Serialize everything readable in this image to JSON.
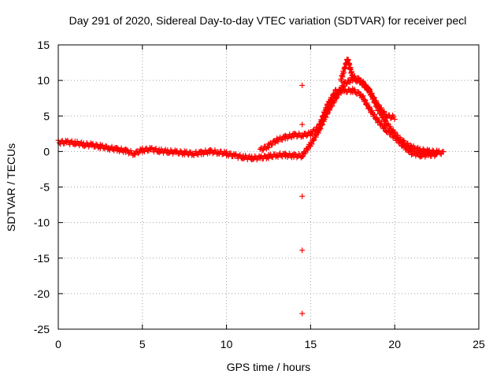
{
  "chart_data": {
    "type": "scatter",
    "title": "Day 291 of 2020, Sidereal Day-to-day VTEC variation (SDTVAR) for receiver pecl",
    "xlabel": "GPS time / hours",
    "ylabel": "SDTVAR / TECUs",
    "xlim": [
      0,
      25
    ],
    "ylim": [
      -25,
      15
    ],
    "xticks": [
      0,
      5,
      10,
      15,
      20,
      25
    ],
    "yticks": [
      -25,
      -20,
      -15,
      -10,
      -5,
      0,
      5,
      10,
      15
    ],
    "grid": true,
    "marker": "+",
    "color": "#ff0000",
    "series": [
      {
        "name": "main band",
        "points": [
          [
            0.0,
            1.3
          ],
          [
            0.5,
            1.3
          ],
          [
            1.0,
            1.2
          ],
          [
            1.5,
            1.0
          ],
          [
            2.0,
            0.9
          ],
          [
            2.5,
            0.7
          ],
          [
            3.0,
            0.5
          ],
          [
            3.5,
            0.3
          ],
          [
            4.0,
            0.1
          ],
          [
            4.5,
            -0.3
          ],
          [
            5.0,
            0.2
          ],
          [
            5.5,
            0.3
          ],
          [
            6.0,
            0.1
          ],
          [
            6.5,
            0.0
          ],
          [
            7.0,
            -0.1
          ],
          [
            7.5,
            -0.2
          ],
          [
            8.0,
            -0.3
          ],
          [
            8.5,
            -0.2
          ],
          [
            9.0,
            0.0
          ],
          [
            9.5,
            -0.1
          ],
          [
            10.0,
            -0.3
          ],
          [
            10.5,
            -0.6
          ],
          [
            11.0,
            -0.8
          ],
          [
            11.5,
            -0.9
          ],
          [
            12.0,
            -0.9
          ],
          [
            12.5,
            -0.7
          ],
          [
            13.0,
            -0.5
          ],
          [
            13.5,
            -0.5
          ],
          [
            14.0,
            -0.6
          ],
          [
            14.5,
            -0.6
          ],
          [
            15.0,
            1.0
          ],
          [
            15.5,
            3.0
          ],
          [
            16.0,
            5.5
          ],
          [
            16.5,
            7.5
          ],
          [
            17.0,
            9.5
          ],
          [
            17.5,
            10.2
          ],
          [
            18.0,
            9.8
          ],
          [
            18.5,
            8.5
          ],
          [
            19.0,
            6.0
          ],
          [
            19.5,
            4.0
          ],
          [
            20.0,
            2.5
          ],
          [
            20.5,
            1.3
          ],
          [
            21.0,
            0.6
          ],
          [
            21.5,
            0.2
          ],
          [
            22.0,
            0.0
          ],
          [
            22.5,
            -0.1
          ],
          [
            22.9,
            -0.2
          ]
        ]
      },
      {
        "name": "secondary band",
        "points": [
          [
            12.0,
            0.2
          ],
          [
            12.5,
            0.8
          ],
          [
            13.0,
            1.6
          ],
          [
            13.5,
            2.0
          ],
          [
            14.0,
            2.3
          ],
          [
            14.5,
            2.3
          ],
          [
            15.0,
            2.5
          ],
          [
            15.5,
            3.5
          ],
          [
            16.0,
            6.5
          ],
          [
            16.5,
            8.5
          ],
          [
            17.0,
            8.5
          ],
          [
            17.5,
            8.6
          ],
          [
            18.0,
            8.0
          ],
          [
            18.5,
            6.0
          ],
          [
            19.0,
            4.3
          ],
          [
            19.5,
            3.0
          ],
          [
            20.0,
            2.0
          ],
          [
            20.5,
            0.8
          ],
          [
            21.0,
            -0.2
          ],
          [
            21.5,
            -0.5
          ],
          [
            22.0,
            -0.5
          ],
          [
            22.5,
            -0.4
          ]
        ]
      },
      {
        "name": "upper ridge",
        "points": [
          [
            16.8,
            10.0
          ],
          [
            17.0,
            11.5
          ],
          [
            17.2,
            13.0
          ],
          [
            17.5,
            10.5
          ],
          [
            18.0,
            10.0
          ],
          [
            18.5,
            8.5
          ],
          [
            19.0,
            6.5
          ],
          [
            19.5,
            5.0
          ],
          [
            20.0,
            4.8
          ]
        ]
      },
      {
        "name": "isolated outliers",
        "points": [
          [
            14.5,
            9.3
          ],
          [
            14.5,
            3.8
          ],
          [
            14.5,
            -6.3
          ],
          [
            14.5,
            -13.9
          ],
          [
            14.5,
            -22.8
          ]
        ]
      }
    ]
  }
}
